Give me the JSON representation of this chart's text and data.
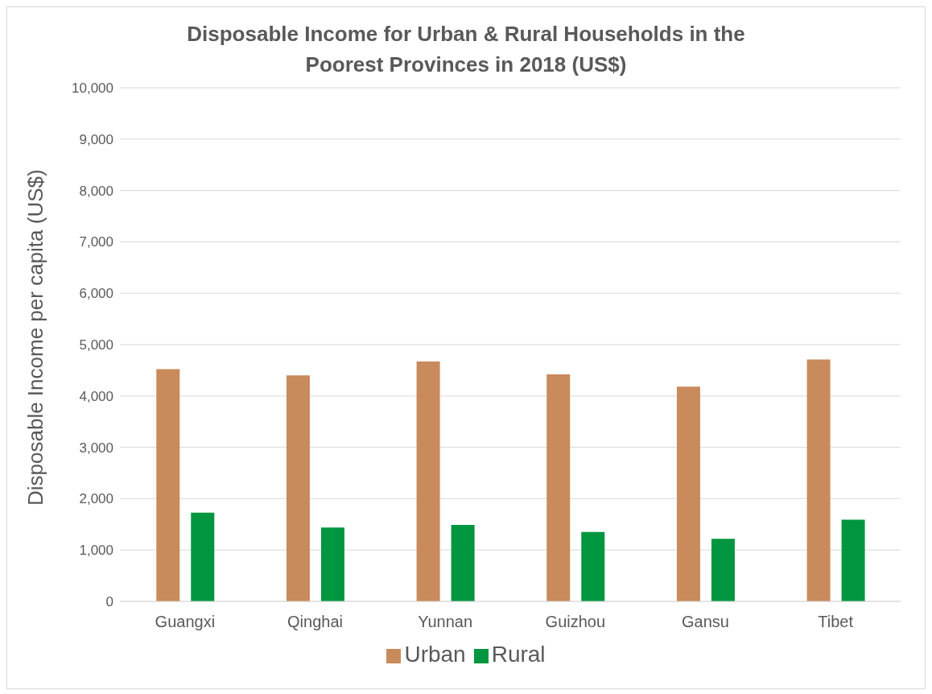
{
  "chart_data": {
    "type": "bar",
    "title": "Disposable Income for Urban & Rural Households in the Poorest Provinces in 2018 (US$)",
    "ylabel": "Disposable Income per capita (US$)",
    "categories": [
      "Guangxi",
      "Qinghai",
      "Yunnan",
      "Guizhou",
      "Gansu",
      "Tibet"
    ],
    "series": [
      {
        "name": "Urban",
        "color": "#c98a5c",
        "values": [
          4520,
          4400,
          4670,
          4420,
          4180,
          4710
        ]
      },
      {
        "name": "Rural",
        "color": "#00963f",
        "values": [
          1730,
          1440,
          1490,
          1350,
          1220,
          1590
        ]
      }
    ],
    "ylim": [
      0,
      10000
    ],
    "yticks": [
      0,
      {
        "value": 1000,
        "label": "1,000"
      },
      {
        "value": 2000,
        "label": "2,000"
      },
      {
        "value": 3000,
        "label": "3,000"
      },
      {
        "value": 4000,
        "label": "4,000"
      },
      {
        "value": 5000,
        "label": "5,000"
      },
      {
        "value": 6000,
        "label": "6,000"
      },
      {
        "value": 7000,
        "label": "7,000"
      },
      {
        "value": 8000,
        "label": "8,000"
      },
      {
        "value": 9000,
        "label": "9,000"
      },
      {
        "value": 10000,
        "label": "10,000"
      }
    ],
    "grid": "y",
    "legend": "bottom"
  }
}
